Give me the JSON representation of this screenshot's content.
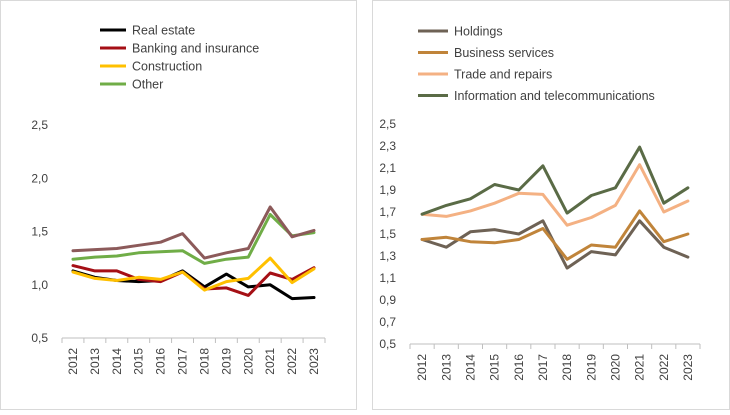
{
  "chart_data": [
    {
      "type": "line",
      "title": "",
      "xlabel": "",
      "ylabel": "",
      "ylim": [
        0.5,
        2.5
      ],
      "y_ticks": [
        "0,5",
        "1,0",
        "1,5",
        "2,0",
        "2,5"
      ],
      "y_tick_values": [
        0.5,
        1.0,
        1.5,
        2.0,
        2.5
      ],
      "categories": [
        "2012",
        "2013",
        "2014",
        "2015",
        "2016",
        "2017",
        "2018",
        "2019",
        "2020",
        "2021",
        "2022",
        "2023"
      ],
      "legend_position": "top",
      "grid": false,
      "series": [
        {
          "name": "Real estate",
          "color": "#000000",
          "values": [
            1.13,
            1.07,
            1.04,
            1.03,
            1.04,
            1.13,
            0.98,
            1.1,
            0.98,
            1.0,
            0.87,
            0.88
          ]
        },
        {
          "name": "Banking and insurance",
          "color": "#a50f15",
          "values": [
            1.18,
            1.13,
            1.13,
            1.05,
            1.03,
            1.12,
            0.96,
            0.97,
            0.9,
            1.11,
            1.05,
            1.16
          ]
        },
        {
          "name": "Construction",
          "color": "#ffc000",
          "values": [
            1.12,
            1.06,
            1.04,
            1.07,
            1.05,
            1.12,
            0.95,
            1.03,
            1.06,
            1.25,
            1.02,
            1.15
          ]
        },
        {
          "name": "Other",
          "color": "#70ad47",
          "values": [
            1.24,
            1.26,
            1.27,
            1.3,
            1.31,
            1.32,
            1.2,
            1.24,
            1.26,
            1.66,
            1.46,
            1.49
          ]
        },
        {
          "name": "",
          "color": "#8c5a5a",
          "legend": false,
          "values": [
            1.32,
            1.33,
            1.34,
            1.37,
            1.4,
            1.48,
            1.25,
            1.3,
            1.34,
            1.73,
            1.45,
            1.51
          ]
        }
      ]
    },
    {
      "type": "line",
      "title": "",
      "xlabel": "",
      "ylabel": "",
      "ylim": [
        0.5,
        2.5
      ],
      "y_ticks": [
        "0,5",
        "0,7",
        "0,9",
        "1,1",
        "1,3",
        "1,5",
        "1,7",
        "1,9",
        "2,1",
        "2,3",
        "2,5"
      ],
      "y_tick_values": [
        0.5,
        0.7,
        0.9,
        1.1,
        1.3,
        1.5,
        1.7,
        1.9,
        2.1,
        2.3,
        2.5
      ],
      "categories": [
        "2012",
        "2013",
        "2014",
        "2015",
        "2016",
        "2017",
        "2018",
        "2019",
        "2020",
        "2021",
        "2022",
        "2023"
      ],
      "legend_position": "top",
      "grid": false,
      "series": [
        {
          "name": "Holdings",
          "color": "#6e6255",
          "values": [
            1.45,
            1.38,
            1.52,
            1.54,
            1.5,
            1.62,
            1.19,
            1.34,
            1.31,
            1.62,
            1.38,
            1.29
          ]
        },
        {
          "name": "Business services",
          "color": "#c0843a",
          "values": [
            1.45,
            1.47,
            1.43,
            1.42,
            1.45,
            1.55,
            1.27,
            1.4,
            1.38,
            1.71,
            1.43,
            1.5
          ]
        },
        {
          "name": "Trade and repairs",
          "color": "#f4b183",
          "values": [
            1.68,
            1.66,
            1.71,
            1.78,
            1.87,
            1.86,
            1.58,
            1.65,
            1.76,
            2.13,
            1.7,
            1.8
          ]
        },
        {
          "name": "Information and telecommunications",
          "color": "#5a6b46",
          "values": [
            1.68,
            1.76,
            1.82,
            1.95,
            1.9,
            2.12,
            1.69,
            1.85,
            1.92,
            2.29,
            1.78,
            1.92
          ]
        }
      ]
    }
  ]
}
